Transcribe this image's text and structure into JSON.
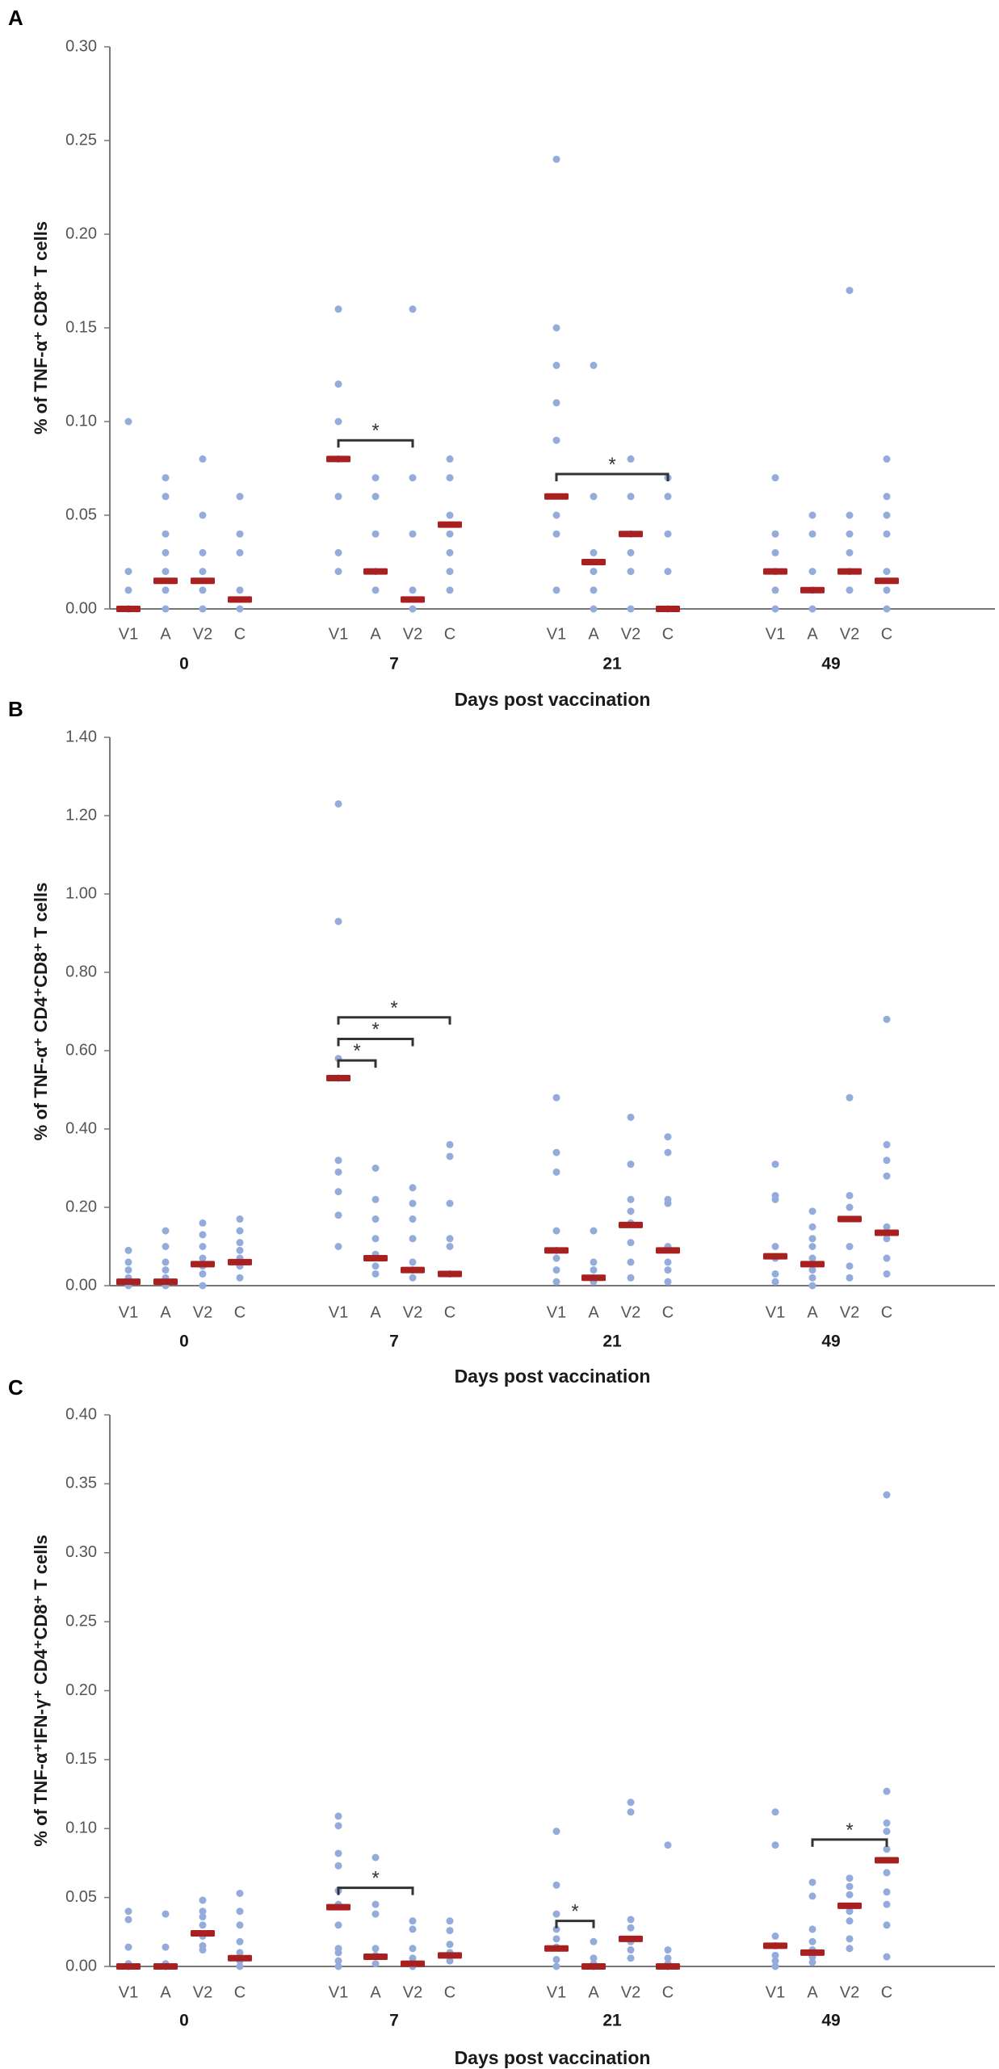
{
  "colors": {
    "point": "#93acdb",
    "median": "#a82020",
    "axis": "#777777",
    "bracket": "#333333"
  },
  "chart_data": [
    {
      "type": "scatter",
      "panel": "A",
      "ylabel": "% of TNF-α⁺ CD8⁺ T cells",
      "xlabel": "Days post vaccination",
      "ylim": [
        0,
        0.3
      ],
      "yticks": [
        "0.00",
        "0.05",
        "0.10",
        "0.15",
        "0.20",
        "0.25",
        "0.30"
      ],
      "yticks_values": [
        0,
        0.05,
        0.1,
        0.15,
        0.2,
        0.25,
        0.3
      ],
      "categories": [
        "V1",
        "A",
        "V2",
        "C"
      ],
      "groups": [
        {
          "label": "0",
          "series": [
            {
              "name": "V1",
              "points": [
                0.1,
                0.02,
                0.01,
                0,
                0,
                0
              ],
              "median": 0
            },
            {
              "name": "A",
              "points": [
                0.07,
                0.06,
                0.04,
                0.03,
                0.02,
                0.01,
                0
              ],
              "median": 0.015
            },
            {
              "name": "V2",
              "points": [
                0.08,
                0.05,
                0.03,
                0.02,
                0.01,
                0
              ],
              "median": 0.015
            },
            {
              "name": "C",
              "points": [
                0.06,
                0.04,
                0.03,
                0.01,
                0
              ],
              "median": 0.005
            }
          ]
        },
        {
          "label": "7",
          "series": [
            {
              "name": "V1",
              "points": [
                0.16,
                0.12,
                0.1,
                0.08,
                0.06,
                0.03,
                0.02
              ],
              "median": 0.08
            },
            {
              "name": "A",
              "points": [
                0.07,
                0.06,
                0.04,
                0.02,
                0.01
              ],
              "median": 0.02
            },
            {
              "name": "V2",
              "points": [
                0.16,
                0.07,
                0.04,
                0.01,
                0
              ],
              "median": 0.005
            },
            {
              "name": "C",
              "points": [
                0.08,
                0.07,
                0.05,
                0.04,
                0.03,
                0.02,
                0.01
              ],
              "median": 0.045
            }
          ]
        },
        {
          "label": "21",
          "series": [
            {
              "name": "V1",
              "points": [
                0.24,
                0.15,
                0.13,
                0.11,
                0.09,
                0.05,
                0.04,
                0.01
              ],
              "median": 0.06
            },
            {
              "name": "A",
              "points": [
                0.13,
                0.06,
                0.03,
                0.02,
                0.01,
                0
              ],
              "median": 0.025
            },
            {
              "name": "V2",
              "points": [
                0.08,
                0.06,
                0.04,
                0.03,
                0.02,
                0
              ],
              "median": 0.04
            },
            {
              "name": "C",
              "points": [
                0.07,
                0.06,
                0.04,
                0.02,
                0
              ],
              "median": 0
            }
          ]
        },
        {
          "label": "49",
          "series": [
            {
              "name": "V1",
              "points": [
                0.07,
                0.04,
                0.03,
                0.02,
                0.01,
                0
              ],
              "median": 0.02
            },
            {
              "name": "A",
              "points": [
                0.05,
                0.04,
                0.02,
                0.01,
                0
              ],
              "median": 0.01
            },
            {
              "name": "V2",
              "points": [
                0.17,
                0.05,
                0.04,
                0.03,
                0.02,
                0.01
              ],
              "median": 0.02
            },
            {
              "name": "C",
              "points": [
                0.08,
                0.06,
                0.05,
                0.04,
                0.02,
                0.01,
                0
              ],
              "median": 0.015
            }
          ]
        }
      ],
      "significance": [
        {
          "group": 1,
          "from": 0,
          "to": 2,
          "y": 0.09,
          "label": "*"
        },
        {
          "group": 2,
          "from": 0,
          "to": 3,
          "y": 0.072,
          "label": "*"
        }
      ]
    },
    {
      "type": "scatter",
      "panel": "B",
      "ylabel": "% of TNF-α⁺ CD4⁺CD8⁺ T cells",
      "xlabel": "Days post vaccination",
      "ylim": [
        0,
        1.4
      ],
      "yticks": [
        "0.00",
        "0.20",
        "0.40",
        "0.60",
        "0.80",
        "1.00",
        "1.20",
        "1.40"
      ],
      "yticks_values": [
        0,
        0.2,
        0.4,
        0.6,
        0.8,
        1.0,
        1.2,
        1.4
      ],
      "categories": [
        "V1",
        "A",
        "V2",
        "C"
      ],
      "groups": [
        {
          "label": "0",
          "series": [
            {
              "name": "V1",
              "points": [
                0.09,
                0.06,
                0.04,
                0.02,
                0.01,
                0.005,
                0
              ],
              "median": 0.01
            },
            {
              "name": "A",
              "points": [
                0.14,
                0.1,
                0.06,
                0.04,
                0.02,
                0.01,
                0
              ],
              "median": 0.01
            },
            {
              "name": "V2",
              "points": [
                0.16,
                0.13,
                0.1,
                0.07,
                0.05,
                0.03,
                0
              ],
              "median": 0.055
            },
            {
              "name": "C",
              "points": [
                0.17,
                0.14,
                0.11,
                0.09,
                0.07,
                0.05,
                0.02
              ],
              "median": 0.06
            }
          ]
        },
        {
          "label": "7",
          "series": [
            {
              "name": "V1",
              "points": [
                1.23,
                0.93,
                0.58,
                0.53,
                0.32,
                0.29,
                0.24,
                0.18,
                0.1
              ],
              "median": 0.53
            },
            {
              "name": "A",
              "points": [
                0.3,
                0.22,
                0.17,
                0.12,
                0.08,
                0.05,
                0.03
              ],
              "median": 0.07
            },
            {
              "name": "V2",
              "points": [
                0.25,
                0.21,
                0.17,
                0.12,
                0.06,
                0.04,
                0.02
              ],
              "median": 0.04
            },
            {
              "name": "C",
              "points": [
                0.36,
                0.33,
                0.21,
                0.12,
                0.1,
                0.03
              ],
              "median": 0.03
            }
          ]
        },
        {
          "label": "21",
          "series": [
            {
              "name": "V1",
              "points": [
                0.48,
                0.34,
                0.29,
                0.14,
                0.09,
                0.07,
                0.04,
                0.01
              ],
              "median": 0.09
            },
            {
              "name": "A",
              "points": [
                0.14,
                0.06,
                0.04,
                0.02,
                0.01
              ],
              "median": 0.02
            },
            {
              "name": "V2",
              "points": [
                0.43,
                0.31,
                0.22,
                0.19,
                0.16,
                0.11,
                0.06,
                0.02
              ],
              "median": 0.155
            },
            {
              "name": "C",
              "points": [
                0.38,
                0.34,
                0.22,
                0.21,
                0.1,
                0.06,
                0.04,
                0.01
              ],
              "median": 0.09
            }
          ]
        },
        {
          "label": "49",
          "series": [
            {
              "name": "V1",
              "points": [
                0.31,
                0.23,
                0.22,
                0.1,
                0.07,
                0.03,
                0.01
              ],
              "median": 0.075
            },
            {
              "name": "A",
              "points": [
                0.19,
                0.15,
                0.12,
                0.1,
                0.07,
                0.04,
                0.02,
                0
              ],
              "median": 0.055
            },
            {
              "name": "V2",
              "points": [
                0.48,
                0.23,
                0.2,
                0.1,
                0.05,
                0.02
              ],
              "median": 0.17
            },
            {
              "name": "C",
              "points": [
                0.68,
                0.36,
                0.32,
                0.28,
                0.15,
                0.12,
                0.07,
                0.03
              ],
              "median": 0.135
            }
          ]
        }
      ],
      "significance": [
        {
          "group": 1,
          "from": 0,
          "to": 1,
          "y": 0.575,
          "label": "*"
        },
        {
          "group": 1,
          "from": 0,
          "to": 2,
          "y": 0.63,
          "label": "*"
        },
        {
          "group": 1,
          "from": 0,
          "to": 3,
          "y": 0.685,
          "label": "*"
        }
      ]
    },
    {
      "type": "scatter",
      "panel": "C",
      "ylabel": "% of TNF-α⁺IFN-γ⁺ CD4⁺CD8⁺ T cells",
      "xlabel": "Days post vaccination",
      "ylim": [
        0,
        0.4
      ],
      "yticks": [
        "0.00",
        "0.05",
        "0.10",
        "0.15",
        "0.20",
        "0.25",
        "0.30",
        "0.35",
        "0.40"
      ],
      "yticks_values": [
        0,
        0.05,
        0.1,
        0.15,
        0.2,
        0.25,
        0.3,
        0.35,
        0.4
      ],
      "categories": [
        "V1",
        "A",
        "V2",
        "C"
      ],
      "groups": [
        {
          "label": "0",
          "series": [
            {
              "name": "V1",
              "points": [
                0.04,
                0.034,
                0.014,
                0.002,
                0
              ],
              "median": 0
            },
            {
              "name": "A",
              "points": [
                0.038,
                0.014,
                0.002,
                0
              ],
              "median": 0
            },
            {
              "name": "V2",
              "points": [
                0.048,
                0.04,
                0.036,
                0.03,
                0.022,
                0.015,
                0.012
              ],
              "median": 0.024
            },
            {
              "name": "C",
              "points": [
                0.053,
                0.04,
                0.03,
                0.018,
                0.01,
                0.004,
                0
              ],
              "median": 0.006
            }
          ]
        },
        {
          "label": "7",
          "series": [
            {
              "name": "V1",
              "points": [
                0.109,
                0.102,
                0.082,
                0.073,
                0.055,
                0.045,
                0.03,
                0.013,
                0.01,
                0.004,
                0
              ],
              "median": 0.043
            },
            {
              "name": "A",
              "points": [
                0.079,
                0.045,
                0.038,
                0.013,
                0.008,
                0.002
              ],
              "median": 0.007
            },
            {
              "name": "V2",
              "points": [
                0.033,
                0.027,
                0.013,
                0.006,
                0.003,
                0
              ],
              "median": 0.002
            },
            {
              "name": "C",
              "points": [
                0.033,
                0.026,
                0.016,
                0.01,
                0.004
              ],
              "median": 0.008
            }
          ]
        },
        {
          "label": "21",
          "series": [
            {
              "name": "V1",
              "points": [
                0.098,
                0.059,
                0.038,
                0.027,
                0.02,
                0.014,
                0.005,
                0
              ],
              "median": 0.013
            },
            {
              "name": "A",
              "points": [
                0.018,
                0.006,
                0.002,
                0
              ],
              "median": 0
            },
            {
              "name": "V2",
              "points": [
                0.119,
                0.112,
                0.034,
                0.028,
                0.018,
                0.012,
                0.006
              ],
              "median": 0.02
            },
            {
              "name": "C",
              "points": [
                0.088,
                0.012,
                0.006,
                0.002,
                0
              ],
              "median": 0
            }
          ]
        },
        {
          "label": "49",
          "series": [
            {
              "name": "V1",
              "points": [
                0.112,
                0.088,
                0.022,
                0.015,
                0.008,
                0.004,
                0
              ],
              "median": 0.015
            },
            {
              "name": "A",
              "points": [
                0.061,
                0.051,
                0.027,
                0.018,
                0.012,
                0.007,
                0.003
              ],
              "median": 0.01
            },
            {
              "name": "V2",
              "points": [
                0.064,
                0.058,
                0.052,
                0.04,
                0.033,
                0.02,
                0.013
              ],
              "median": 0.044
            },
            {
              "name": "C",
              "points": [
                0.342,
                0.127,
                0.104,
                0.098,
                0.085,
                0.068,
                0.054,
                0.045,
                0.03,
                0.007
              ],
              "median": 0.077
            }
          ]
        }
      ],
      "significance": [
        {
          "group": 1,
          "from": 0,
          "to": 2,
          "y": 0.057,
          "label": "*"
        },
        {
          "group": 2,
          "from": 0,
          "to": 1,
          "y": 0.033,
          "label": "*"
        },
        {
          "group": 3,
          "from": 1,
          "to": 3,
          "y": 0.092,
          "label": "*"
        }
      ]
    }
  ]
}
